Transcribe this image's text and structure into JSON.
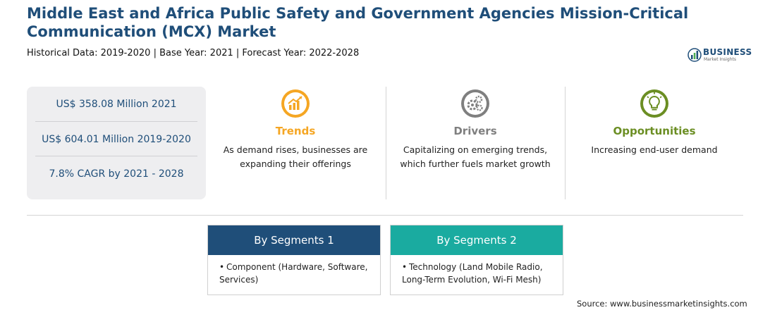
{
  "header": {
    "title": "Middle East and Africa Public Safety and Government Agencies Mission-Critical Communication (MCX) Market",
    "subtitle": "Historical Data: 2019-2020 | Base Year: 2021 | Forecast Year: 2022-2028"
  },
  "logo": {
    "name": "BUSINESS",
    "tagline": "Market Insights",
    "icon": "bar-chart-globe-icon"
  },
  "stats": [
    "US$ 358.08 Million 2021",
    "US$ 604.01 Million 2019-2020",
    "7.8% CAGR by 2021 - 2028"
  ],
  "columns": [
    {
      "label": "Trends",
      "description": "As demand rises, businesses are expanding their offerings",
      "color": "#f5a623",
      "icon": "trend-chart-icon"
    },
    {
      "label": "Drivers",
      "description": "Capitalizing on emerging trends, which further fuels market growth",
      "color": "#7f7f7f",
      "icon": "gears-icon"
    },
    {
      "label": "Opportunities",
      "description": "Increasing end-user demand",
      "color": "#6b8e23",
      "icon": "lightbulb-icon"
    }
  ],
  "segments": [
    {
      "title": "By Segments 1",
      "color": "#1f4e79",
      "item": "Component (Hardware, Software, Services)"
    },
    {
      "title": "By Segments 2",
      "color": "#1aaba0",
      "item": "Technology (Land Mobile Radio, Long-Term Evolution, Wi-Fi Mesh)"
    }
  ],
  "source": "Source: www.businessmarketinsights.com",
  "bullet": "•"
}
